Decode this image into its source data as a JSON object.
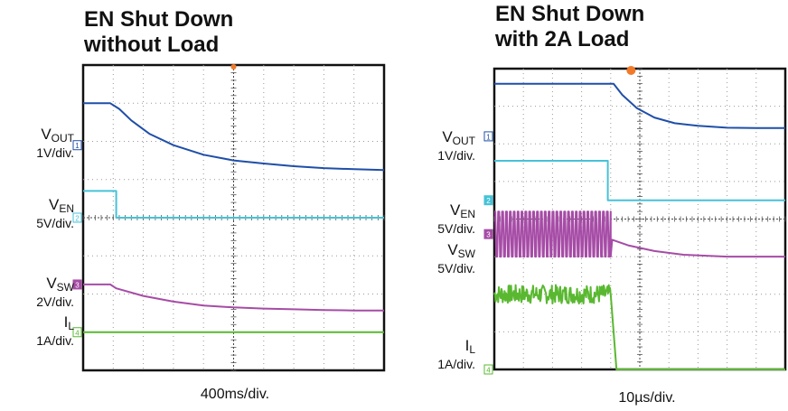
{
  "chart_data": [
    {
      "type": "line",
      "title_lines": [
        "EN Shut Down",
        "without Load"
      ],
      "timebase": "400ms/div.",
      "grid": true,
      "grid_divisions": {
        "x": 10,
        "y": 8
      },
      "series": [
        {
          "label": "V",
          "sub": "OUT",
          "scale": "1V/div.",
          "marker": "1",
          "color": "#1f4fa8",
          "points": [
            [
              0,
              7.0
            ],
            [
              0.9,
              7.0
            ],
            [
              1.2,
              6.85
            ],
            [
              1.6,
              6.55
            ],
            [
              2.2,
              6.2
            ],
            [
              3,
              5.9
            ],
            [
              4,
              5.65
            ],
            [
              5,
              5.5
            ],
            [
              6,
              5.42
            ],
            [
              7,
              5.35
            ],
            [
              8,
              5.3
            ],
            [
              9,
              5.27
            ],
            [
              10,
              5.25
            ]
          ]
        },
        {
          "label": "V",
          "sub": "EN",
          "scale": "5V/div.",
          "marker": "2",
          "color": "#47c2d8",
          "points": [
            [
              0,
              4.7
            ],
            [
              1.1,
              4.7
            ],
            [
              1.1,
              4.0
            ],
            [
              10,
              4.0
            ]
          ]
        },
        {
          "label": "V",
          "sub": "SW",
          "scale": "2V/div.",
          "marker": "3",
          "color": "#a64ca6",
          "points": [
            [
              0,
              2.25
            ],
            [
              0.9,
              2.25
            ],
            [
              1.1,
              2.15
            ],
            [
              2,
              1.95
            ],
            [
              3,
              1.8
            ],
            [
              4,
              1.7
            ],
            [
              5,
              1.65
            ],
            [
              6,
              1.62
            ],
            [
              7,
              1.6
            ],
            [
              8,
              1.58
            ],
            [
              9,
              1.57
            ],
            [
              10,
              1.57
            ]
          ]
        },
        {
          "label": "I",
          "sub": "L",
          "scale": "1A/div.",
          "marker": "4",
          "color": "#59b830",
          "points": [
            [
              0,
              1.0
            ],
            [
              10,
              1.0
            ]
          ]
        }
      ]
    },
    {
      "type": "line",
      "title_lines": [
        "EN Shut Down",
        "with 2A Load"
      ],
      "timebase": "10µs/div.",
      "grid": true,
      "grid_divisions": {
        "x": 10,
        "y": 8
      },
      "series": [
        {
          "label": "V",
          "sub": "OUT",
          "scale": "1V/div.",
          "marker": "1",
          "color": "#1f4fa8",
          "points": [
            [
              0,
              7.6
            ],
            [
              4.1,
              7.6
            ],
            [
              4.4,
              7.3
            ],
            [
              4.9,
              6.95
            ],
            [
              5.5,
              6.7
            ],
            [
              6.2,
              6.55
            ],
            [
              7,
              6.48
            ],
            [
              8,
              6.43
            ],
            [
              9,
              6.42
            ],
            [
              10,
              6.42
            ]
          ]
        },
        {
          "label": "V",
          "sub": "EN",
          "scale": "5V/div.",
          "marker": "2",
          "color": "#47c2d8",
          "points": [
            [
              0,
              5.55
            ],
            [
              3.9,
              5.55
            ],
            [
              3.9,
              4.5
            ],
            [
              10,
              4.5
            ]
          ]
        },
        {
          "label": "V",
          "sub": "SW",
          "scale": "5V/div.",
          "marker": "3",
          "color": "#a64ca6",
          "switching": {
            "until": 4.0,
            "high": 4.2,
            "low": 3.0
          },
          "points": [
            [
              4.0,
              3.0
            ],
            [
              4.05,
              3.45
            ],
            [
              4.6,
              3.3
            ],
            [
              5.5,
              3.15
            ],
            [
              6.5,
              3.05
            ],
            [
              8,
              3.0
            ],
            [
              10,
              3.0
            ]
          ]
        },
        {
          "label": "I",
          "sub": "L",
          "scale": "1A/div.",
          "marker": "4",
          "color": "#59b830",
          "noise": {
            "until": 4.0,
            "center": 2.0,
            "amp": 0.25
          },
          "points": [
            [
              4.0,
              2.0
            ],
            [
              4.1,
              1.0
            ],
            [
              4.2,
              0.0
            ],
            [
              10,
              0.0
            ]
          ]
        }
      ]
    }
  ]
}
